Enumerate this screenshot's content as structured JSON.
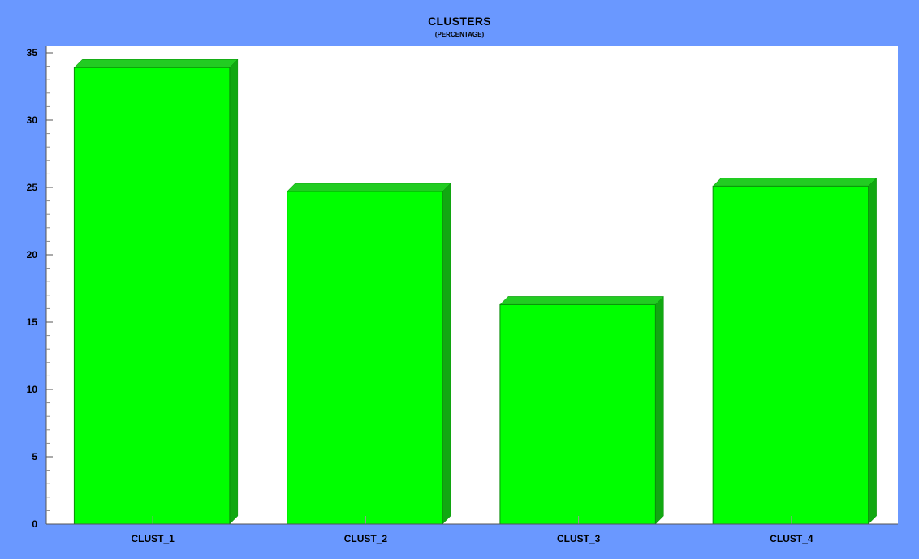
{
  "chart_data": {
    "type": "bar",
    "title": "CLUSTERS",
    "subtitle": "(PERCENTAGE)",
    "categories": [
      "CLUST_1",
      "CLUST_2",
      "CLUST_3",
      "CLUST_4"
    ],
    "series": [
      {
        "values": [
          33.9,
          24.7,
          16.3,
          25.1
        ]
      }
    ],
    "ylim": [
      0,
      35
    ],
    "yticks": [
      0,
      5,
      10,
      15,
      20,
      25,
      30,
      35
    ],
    "minor_ticks_per_major": 5,
    "xlabel": "",
    "ylabel": "",
    "grid": false,
    "legend": "none",
    "style": "3d",
    "colors": {
      "frame_background": "#6a98ff",
      "plot_background": "#ffffff",
      "bar_front": "#00ff00",
      "bar_top": "#22cc22",
      "bar_side": "#12a812",
      "bar_edge": "#0a8f0a",
      "axis": "#555555"
    }
  }
}
